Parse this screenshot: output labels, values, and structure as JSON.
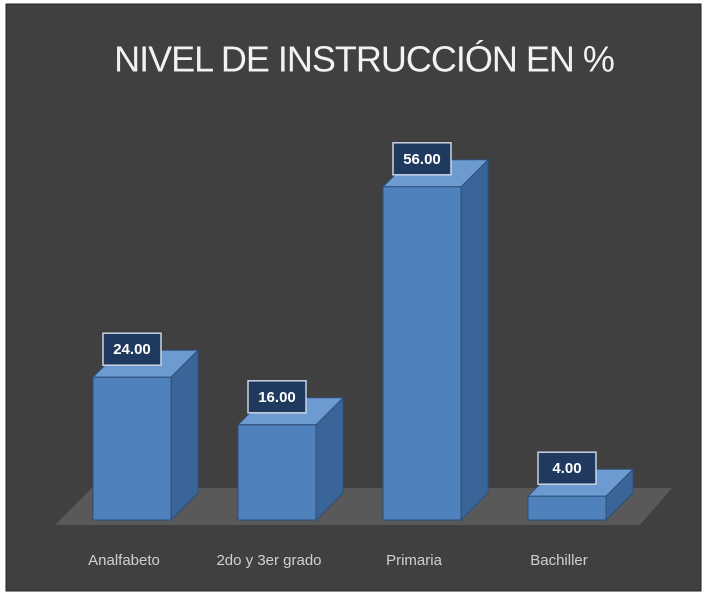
{
  "chart_data": {
    "type": "bar3d",
    "title": "NIVEL DE INSTRUCCIÓN EN %",
    "categories": [
      "Analfabeto",
      "2do y 3er  grado",
      "Primaria",
      "Bachiller"
    ],
    "values": [
      24,
      16,
      56,
      4
    ],
    "value_labels": [
      "24.00",
      "16.00",
      "56.00",
      "4.00"
    ],
    "color": "#4f81bd"
  }
}
